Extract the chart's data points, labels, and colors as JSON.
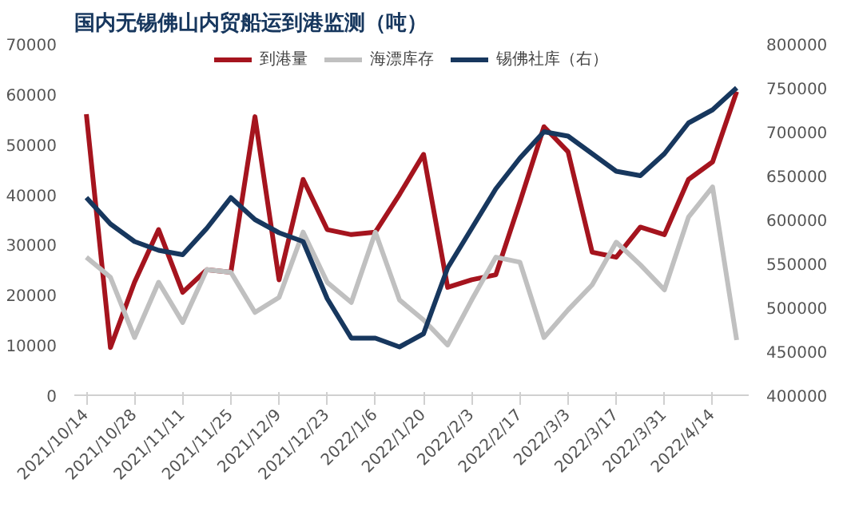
{
  "chart_data": {
    "type": "line",
    "title": "国内无锡佛山内贸船运到港监测（吨）",
    "categories": [
      "2021/10/14",
      null,
      "2021/10/28",
      null,
      "2021/11/11",
      null,
      "2021/11/25",
      null,
      "2021/12/9",
      null,
      "2021/12/23",
      null,
      "2022/1/6",
      null,
      "2022/1/20",
      null,
      "2022/2/3",
      null,
      "2022/2/17",
      null,
      "2022/3/3",
      null,
      "2022/3/17",
      null,
      "2022/3/31",
      null,
      "2022/4/14",
      null
    ],
    "series": [
      {
        "name": "到港量",
        "color": "#a5141e",
        "values": [
          56000,
          9500,
          22500,
          33000,
          20500,
          25000,
          24500,
          55500,
          23000,
          43000,
          33000,
          32000,
          32500,
          40000,
          48000,
          21500,
          23000,
          24000,
          38500,
          53500,
          48500,
          28500,
          27500,
          33500,
          32000,
          43000,
          46500,
          60500
        ]
      },
      {
        "name": "海漂库存",
        "color": "#c0c0c0",
        "values": [
          27500,
          23500,
          11500,
          22500,
          14500,
          25000,
          24500,
          16500,
          19500,
          32500,
          22500,
          18500,
          32500,
          19000,
          15000,
          10000,
          19000,
          27500,
          26500,
          11500,
          17000,
          22000,
          30500,
          26000,
          21000,
          35500,
          41500,
          11000
        ]
      },
      {
        "name": "锡佛社库（右）",
        "color": "#17375e",
        "axis": "y2",
        "values": [
          625000,
          595000,
          575000,
          565000,
          560000,
          590000,
          625000,
          600000,
          585000,
          575000,
          510000,
          465000,
          465000,
          455000,
          470000,
          545000,
          590000,
          635000,
          670000,
          700000,
          695000,
          675000,
          655000,
          650000,
          675000,
          710000,
          725000,
          750000
        ]
      }
    ],
    "ylim": [
      0,
      70000
    ],
    "yticks": [
      0,
      10000,
      20000,
      30000,
      40000,
      50000,
      60000,
      70000
    ],
    "y2lim": [
      400000,
      800000
    ],
    "y2ticks": [
      400000,
      450000,
      500000,
      550000,
      600000,
      650000,
      700000,
      750000,
      800000
    ],
    "legend": "top",
    "grid": false,
    "line_style": "solid"
  }
}
